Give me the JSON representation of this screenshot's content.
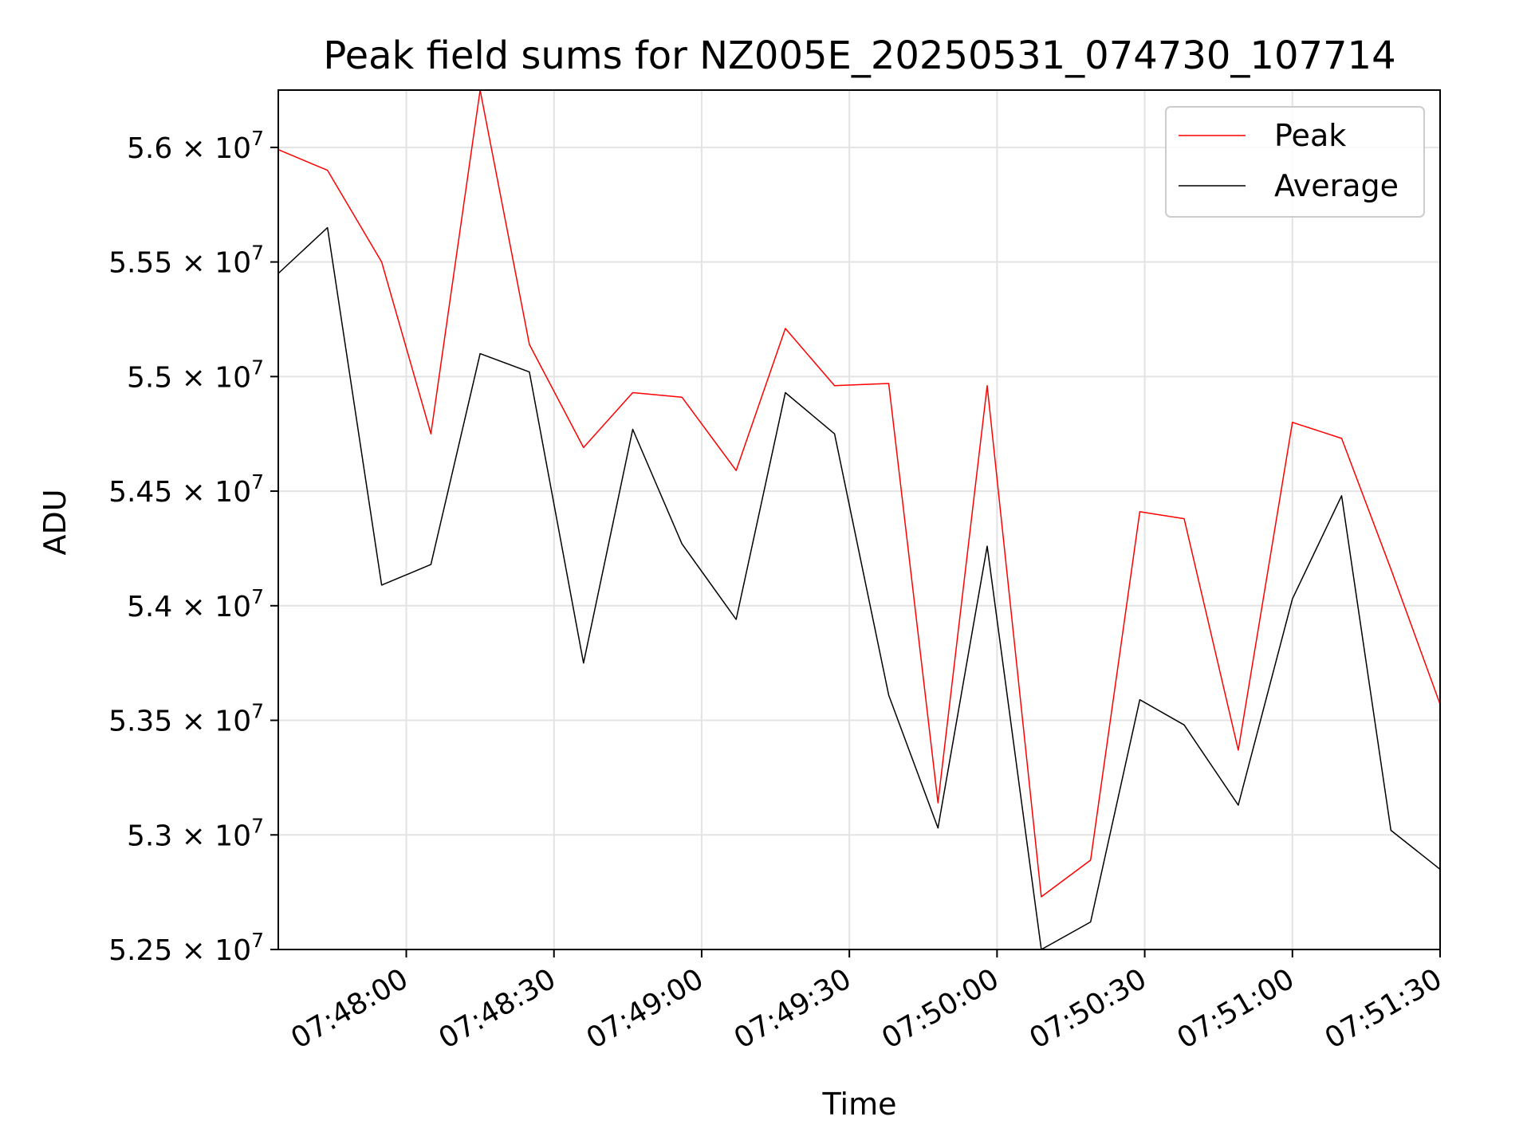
{
  "chart_data": {
    "type": "line",
    "title": "Peak field sums for NZ005E_20250531_074730_107714",
    "xlabel": "Time",
    "ylabel": "ADU",
    "x_axis_kind": "time",
    "x_min": "07:47:34",
    "x_max": "07:51:30",
    "ylim": [
      52500000,
      56250000
    ],
    "x_ticks": [
      "07:48:00",
      "07:48:30",
      "07:49:00",
      "07:49:30",
      "07:50:00",
      "07:50:30",
      "07:51:00",
      "07:51:30"
    ],
    "y_ticks": [
      {
        "value": 52500000,
        "mantissa": "5.25"
      },
      {
        "value": 53000000,
        "mantissa": "5.3"
      },
      {
        "value": 53500000,
        "mantissa": "5.35"
      },
      {
        "value": 54000000,
        "mantissa": "5.4"
      },
      {
        "value": 54500000,
        "mantissa": "5.45"
      },
      {
        "value": 55000000,
        "mantissa": "5.5"
      },
      {
        "value": 55500000,
        "mantissa": "5.55"
      },
      {
        "value": 56000000,
        "mantissa": "5.6"
      }
    ],
    "y_tick_times": "× 10",
    "y_tick_exponent": "7",
    "grid": true,
    "legend_position": "top-right",
    "x": [
      "07:47:34",
      "07:47:44",
      "07:47:55",
      "07:48:05",
      "07:48:15",
      "07:48:25",
      "07:48:36",
      "07:48:46",
      "07:48:56",
      "07:49:07",
      "07:49:17",
      "07:49:27",
      "07:49:38",
      "07:49:48",
      "07:49:58",
      "07:50:09",
      "07:50:19",
      "07:50:29",
      "07:50:38",
      "07:50:49",
      "07:51:00",
      "07:51:10",
      "07:51:20",
      "07:51:30"
    ],
    "series": [
      {
        "name": "Peak",
        "color": "#ff0000",
        "values": [
          55990000,
          55900000,
          55500000,
          54750000,
          56250000,
          55140000,
          54690000,
          54930000,
          54910000,
          54590000,
          55210000,
          54960000,
          54970000,
          53140000,
          54960000,
          52730000,
          52890000,
          54410000,
          54380000,
          53370000,
          54800000,
          54730000,
          54160000,
          53570000
        ]
      },
      {
        "name": "Average",
        "color": "#000000",
        "values": [
          55450000,
          55650000,
          54090000,
          54180000,
          55100000,
          55020000,
          53750000,
          54770000,
          54270000,
          53940000,
          54930000,
          54750000,
          53610000,
          53030000,
          54260000,
          52500000,
          52620000,
          53590000,
          53480000,
          53130000,
          54030000,
          54480000,
          53020000,
          52850000
        ]
      }
    ]
  }
}
